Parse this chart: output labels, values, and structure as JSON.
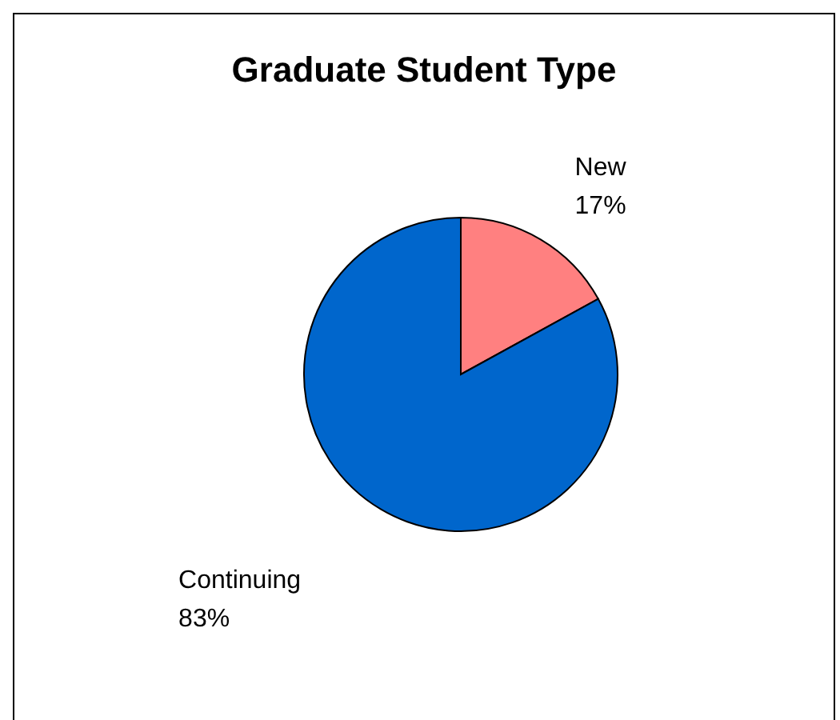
{
  "chart_data": {
    "type": "pie",
    "title": "Graduate Student Type",
    "categories": [
      "New",
      "Continuing"
    ],
    "values": [
      17,
      83
    ],
    "value_labels": [
      "17%",
      "83%"
    ],
    "colors": [
      "#ff8080",
      "#0066cc"
    ]
  }
}
